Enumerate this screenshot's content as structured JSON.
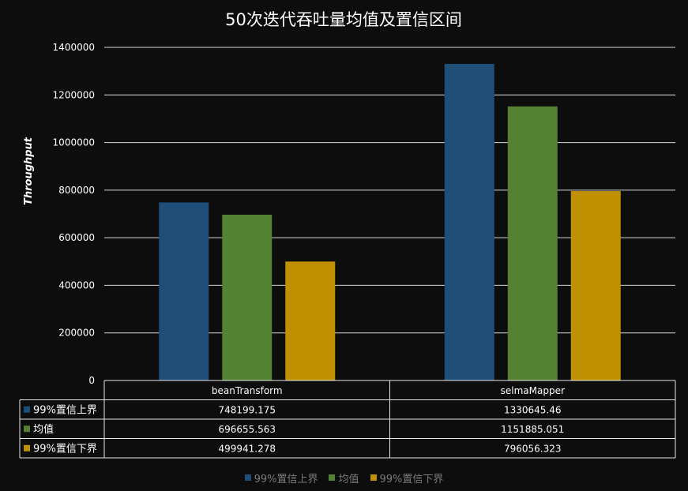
{
  "chart_data": {
    "type": "bar",
    "title": "50次迭代吞吐量均值及置信区间",
    "ylabel": "Throughput",
    "xlabel": "",
    "ylim": [
      0,
      1400000
    ],
    "yticks": [
      "0",
      "200000",
      "400000",
      "600000",
      "800000",
      "1000000",
      "1200000",
      "1400000"
    ],
    "grid": true,
    "legend_position": "bottom",
    "categories": [
      "beanTransform",
      "selmaMapper"
    ],
    "series": [
      {
        "name": "99%置信上界",
        "color": "#1f4e79",
        "values": [
          748199.175,
          1330645.46
        ],
        "labels": [
          "748199.175",
          "1330645.46"
        ]
      },
      {
        "name": "均值",
        "color": "#548235",
        "values": [
          696655.563,
          1151885.051
        ],
        "labels": [
          "696655.563",
          "1151885.051"
        ]
      },
      {
        "name": "99%置信下界",
        "color": "#bf9000",
        "values": [
          499941.278,
          796056.323
        ],
        "labels": [
          "499941.278",
          "796056.323"
        ]
      }
    ]
  }
}
